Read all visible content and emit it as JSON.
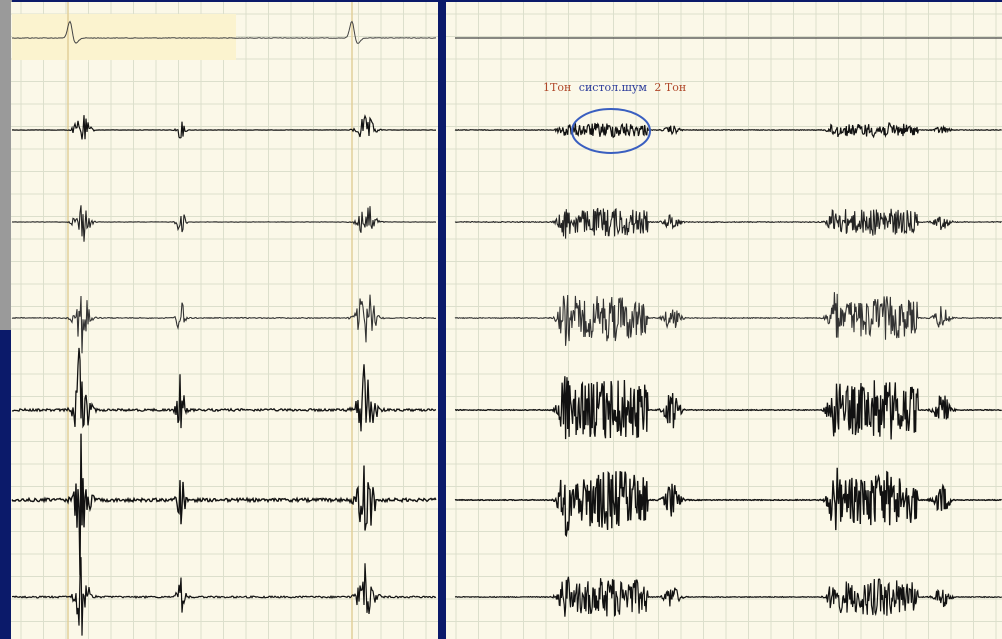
{
  "annotation": {
    "tone1": "1Тон",
    "murmur": "систол.шум",
    "tone2": "2 Тон"
  }
}
